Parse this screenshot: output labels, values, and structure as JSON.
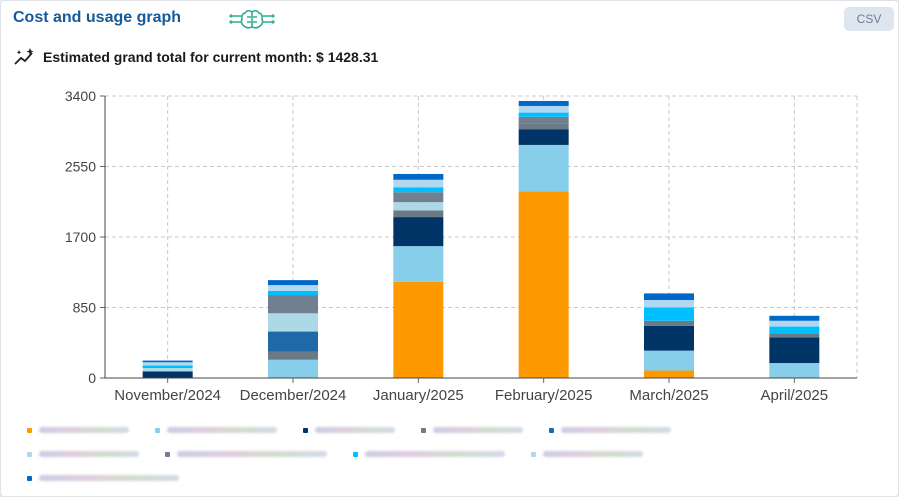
{
  "header": {
    "title": "Cost and usage graph",
    "csv_label": "CSV",
    "total_label": "Estimated grand total for current month: $ 1428.31"
  },
  "chart_data": {
    "type": "bar",
    "stacked": true,
    "categories": [
      "November/2024",
      "December/2024",
      "January/2025",
      "February/2025",
      "March/2025",
      "April/2025"
    ],
    "yticks": [
      0,
      850,
      1700,
      2550,
      3400
    ],
    "ylim": [
      0,
      3400
    ],
    "grid": true,
    "series": [
      {
        "color": "#ff9900",
        "values": [
          0,
          0,
          1160,
          2250,
          90,
          0
        ]
      },
      {
        "color": "#87ceeb",
        "values": [
          0,
          220,
          430,
          560,
          240,
          180
        ]
      },
      {
        "color": "#003366",
        "values": [
          80,
          0,
          350,
          190,
          300,
          310
        ]
      },
      {
        "color": "#6b7b86",
        "values": [
          0,
          100,
          80,
          70,
          60,
          50
        ]
      },
      {
        "color": "#1f6aa6",
        "values": [
          0,
          240,
          0,
          0,
          0,
          0
        ]
      },
      {
        "color": "#add8e6",
        "values": [
          40,
          220,
          100,
          0,
          0,
          0
        ]
      },
      {
        "color": "#708090",
        "values": [
          0,
          220,
          120,
          80,
          0,
          0
        ]
      },
      {
        "color": "#00bfff",
        "values": [
          30,
          50,
          60,
          50,
          160,
          80
        ]
      },
      {
        "color": "#b0d8f0",
        "values": [
          40,
          70,
          90,
          80,
          90,
          70
        ]
      },
      {
        "color": "#0068c9",
        "values": [
          20,
          60,
          70,
          60,
          80,
          60
        ]
      }
    ]
  },
  "legend": {
    "colors": [
      "#ff9900",
      "#87ceeb",
      "#003366",
      "#6b7b86",
      "#1f6aa6",
      "#add8e6",
      "#708090",
      "#00bfff",
      "#b0d8f0",
      "#0068c9"
    ]
  }
}
